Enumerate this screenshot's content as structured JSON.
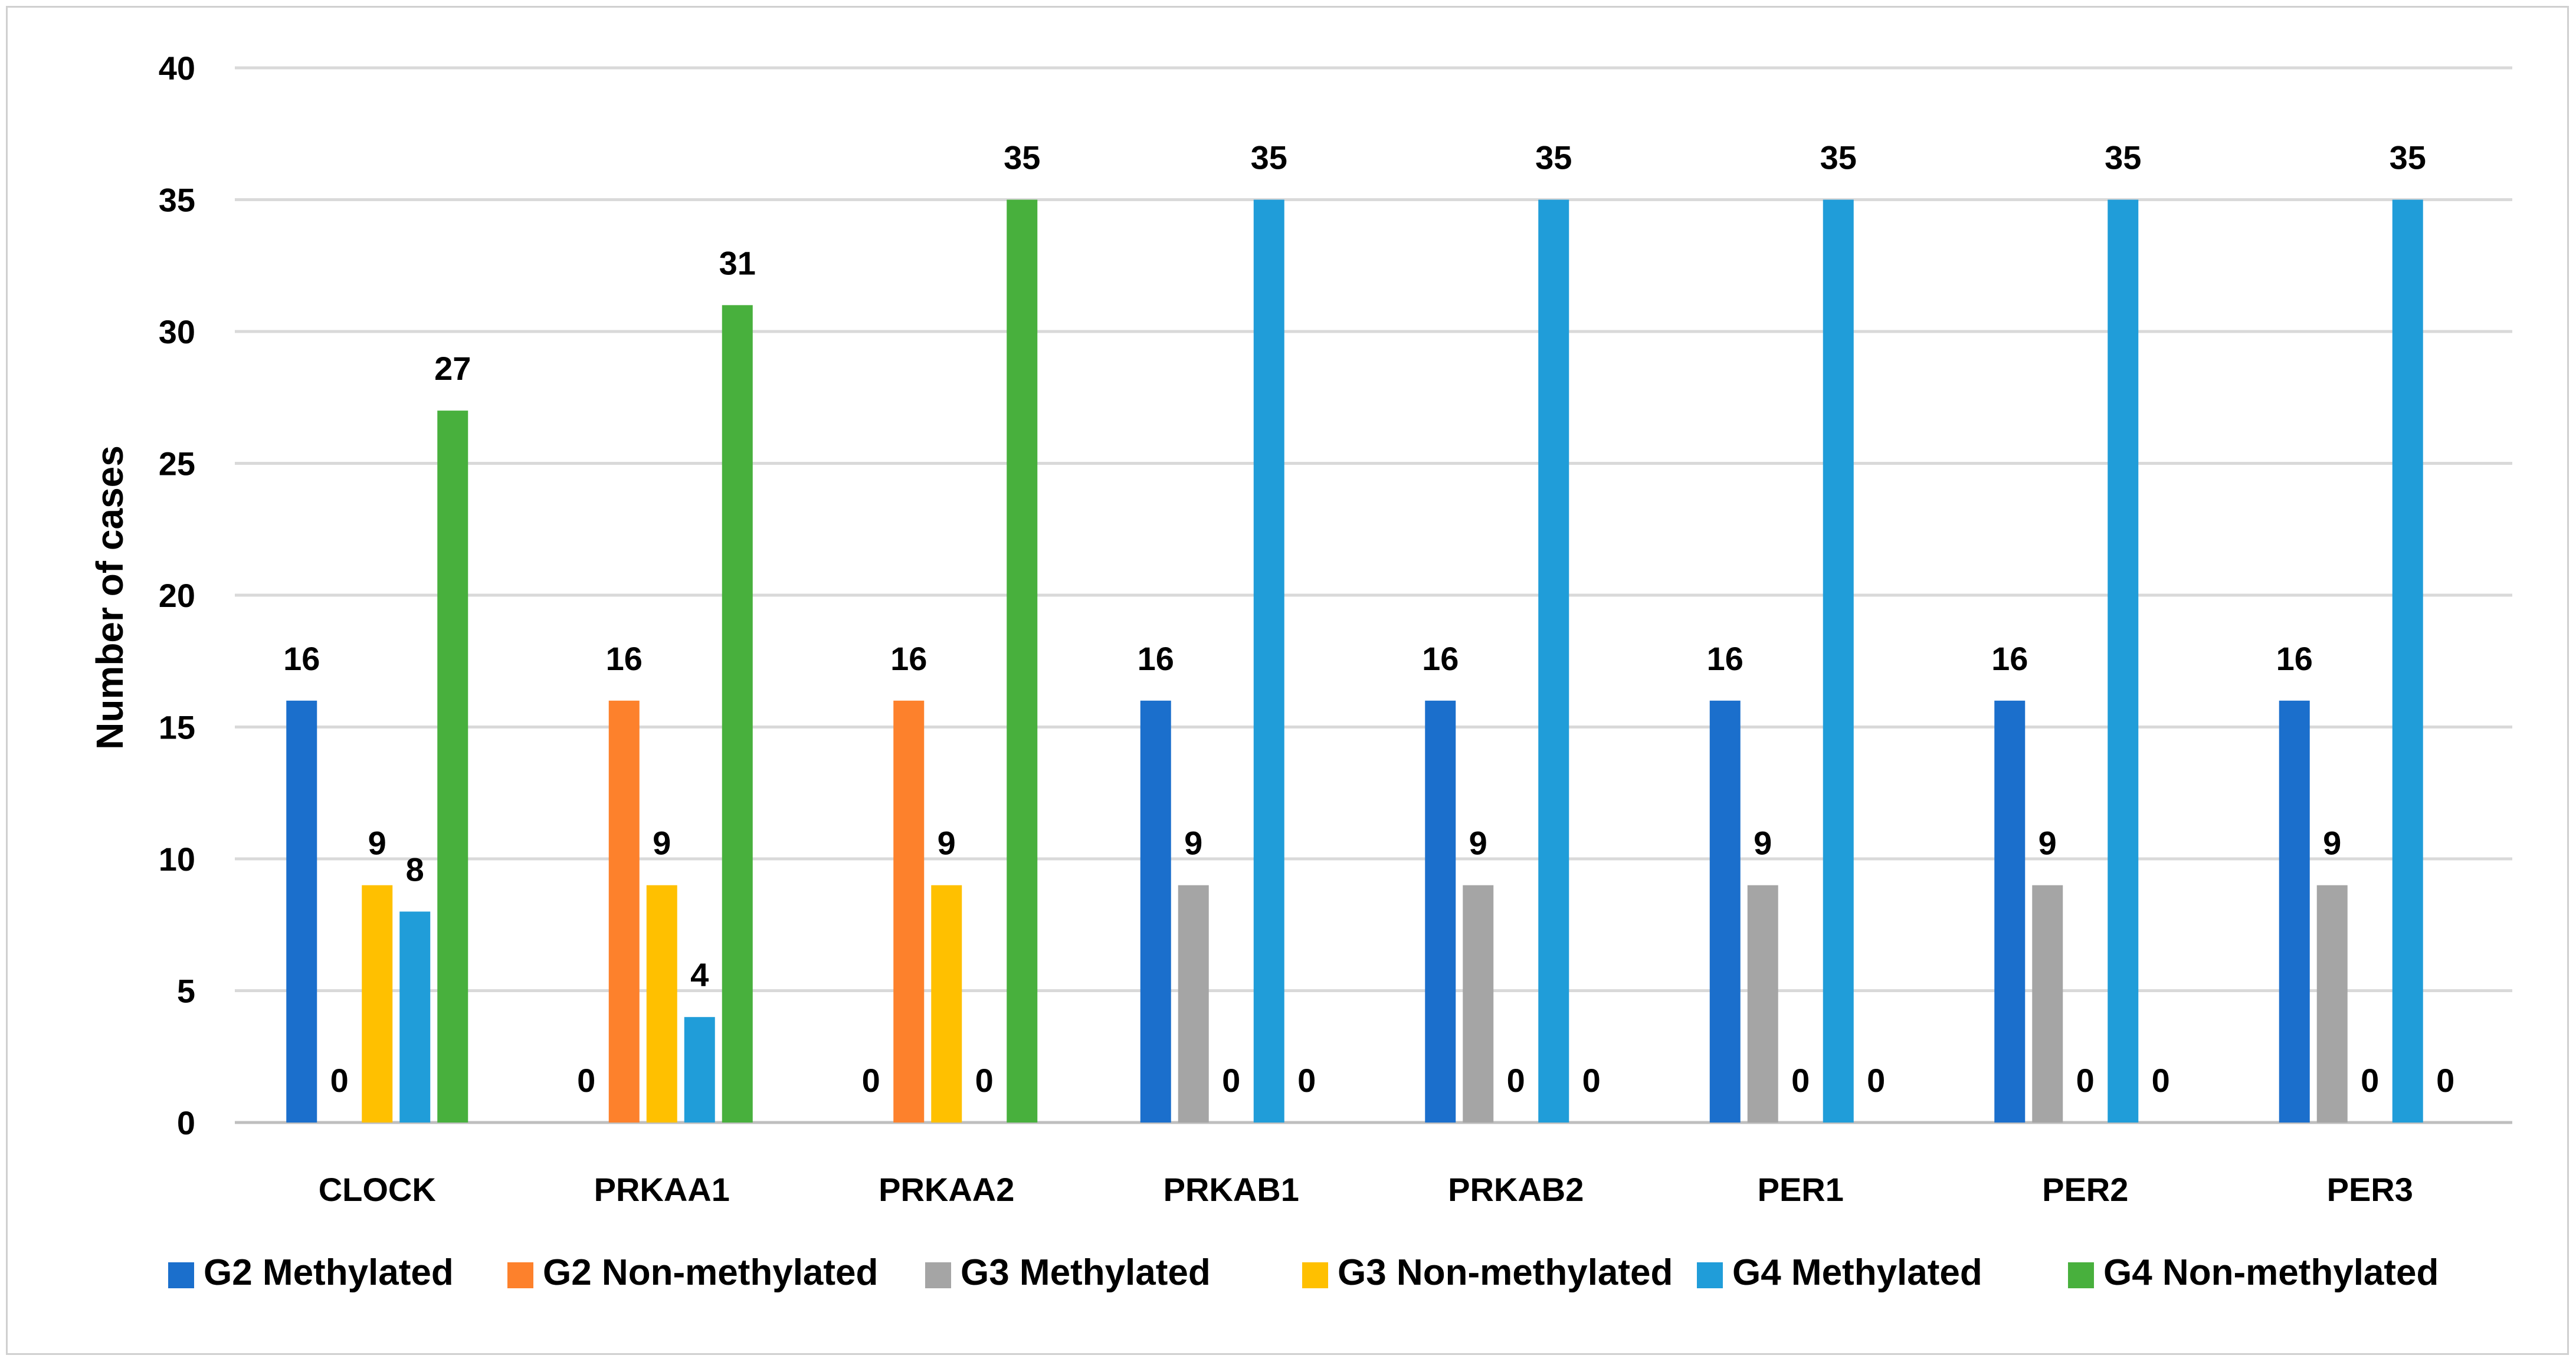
{
  "chart_data": {
    "type": "bar",
    "title": "",
    "xlabel": "",
    "ylabel": "Number of cases",
    "ylim": [
      0,
      40
    ],
    "yticks": [
      0,
      5,
      10,
      15,
      20,
      25,
      30,
      35,
      40
    ],
    "grid": true,
    "legend_position": "bottom",
    "categories": [
      "CLOCK",
      "PRKAA1",
      "PRKAA2",
      "PRKAB1",
      "PRKAB2",
      "PER1",
      "PER2",
      "PER3"
    ],
    "series": [
      {
        "name": "G2 Methylated",
        "color": "#1b6fcc",
        "values": [
          16,
          0,
          0,
          16,
          16,
          16,
          16,
          16
        ]
      },
      {
        "name": "G2 Non-methylated",
        "color": "#fd812c",
        "values": [
          0,
          16,
          16,
          0,
          0,
          0,
          0,
          0
        ]
      },
      {
        "name": "G3 Methylated",
        "color": "#a5a5a5",
        "values": [
          null,
          null,
          null,
          9,
          9,
          9,
          9,
          9
        ]
      },
      {
        "name": "G3 Non-methylated",
        "color": "#ffc000",
        "values": [
          9,
          9,
          9,
          0,
          0,
          0,
          0,
          0
        ]
      },
      {
        "name": "G4 Methylated",
        "color": "#209dd9",
        "values": [
          8,
          4,
          0,
          35,
          35,
          35,
          35,
          35
        ]
      },
      {
        "name": "G4 Non-methylated",
        "color": "#48b03d",
        "values": [
          27,
          31,
          35,
          0,
          0,
          0,
          0,
          0
        ]
      }
    ],
    "bar_order": [
      [
        0,
        1,
        3,
        4,
        5
      ],
      [
        0,
        1,
        3,
        4,
        5
      ],
      [
        0,
        1,
        3,
        4,
        5
      ],
      [
        0,
        2,
        3,
        4,
        5
      ],
      [
        0,
        2,
        3,
        4,
        5
      ],
      [
        0,
        2,
        3,
        4,
        5
      ],
      [
        0,
        2,
        3,
        4,
        5
      ],
      [
        0,
        2,
        3,
        4,
        5
      ]
    ]
  }
}
